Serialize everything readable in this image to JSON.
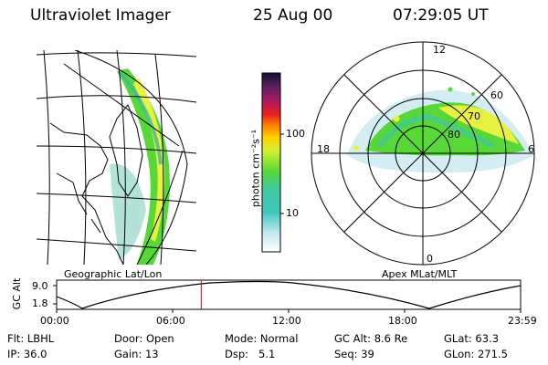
{
  "header": {
    "instrument": "Ultraviolet Imager",
    "date": "25 Aug 00",
    "time": "07:29:05 UT"
  },
  "colorbar": {
    "unit_label": "photon cm⁻²s⁻¹",
    "ticks": [
      "100",
      "10"
    ],
    "scale": "log"
  },
  "polar_plot": {
    "mlt_labels": [
      "12",
      "18",
      "6",
      "0"
    ],
    "mlat_labels": [
      "60",
      "70",
      "80"
    ],
    "caption": "Apex MLat/MLT"
  },
  "map_plot": {
    "caption": "Geographic Lat/Lon"
  },
  "altitude_plot": {
    "ylabel": "GC Alt",
    "yticks": [
      "9.0",
      "1.8"
    ],
    "xticks": [
      "00:00",
      "06:00",
      "12:00",
      "18:00",
      "23:59"
    ],
    "cursor_time_hours": 7.48
  },
  "info": {
    "flt_label": "Flt:",
    "flt_value": "LBHL",
    "ip_label": "IP:",
    "ip_value": "36.0",
    "door_label": "Door:",
    "door_value": "Open",
    "gain_label": "Gain:",
    "gain_value": "13",
    "mode_label": "Mode:",
    "mode_value": "Normal",
    "dsp_label": "Dsp:",
    "dsp_value": "5.1",
    "gcalt_label": "GC Alt:",
    "gcalt_value": "8.6 Re",
    "seq_label": "Seq:",
    "seq_value": "39",
    "glat_label": "GLat:",
    "glat_value": "63.3",
    "glon_label": "GLon:",
    "glon_value": "271.5"
  },
  "colors": {
    "aurora_green": "#58d838",
    "aurora_yellow": "#e8f040",
    "aurora_cyan": "#40c8a8",
    "cursor": "#cc0000"
  }
}
